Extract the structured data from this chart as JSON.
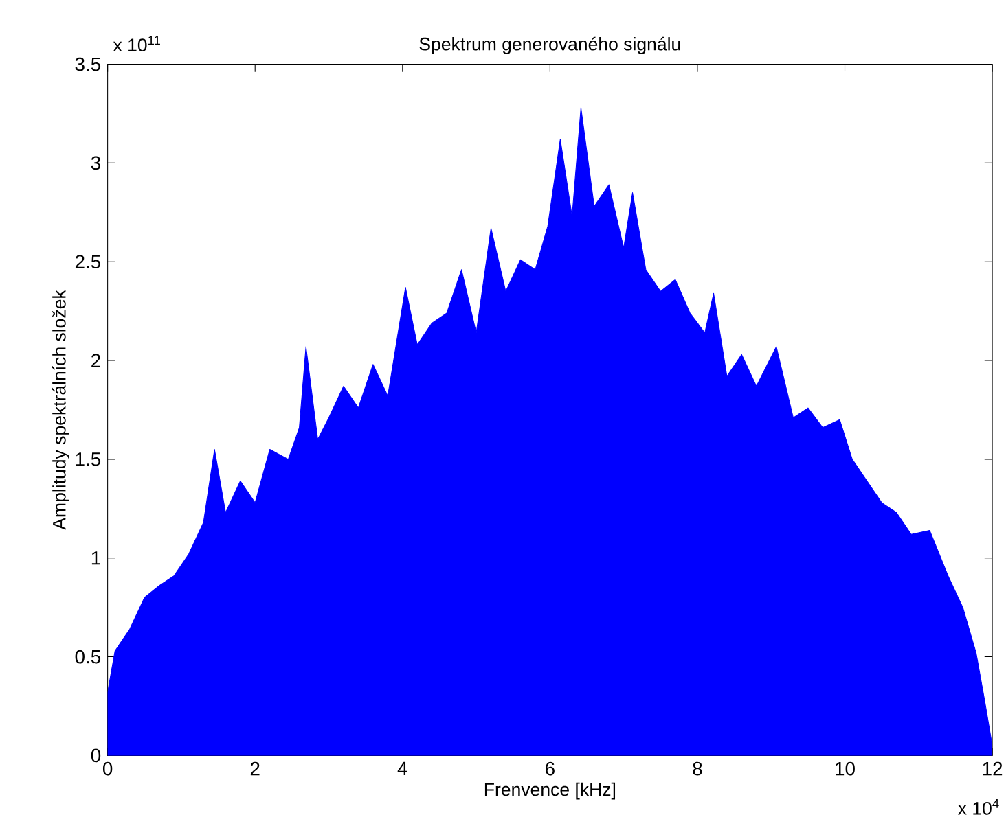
{
  "chart_data": {
    "type": "area",
    "title": "Spektrum generovaného signálu",
    "xlabel": "Frenvence [kHz]",
    "ylabel": "Amplitudy spektrálních složek",
    "annotations": [
      "x 10$^{4}$",
      "x 10$^{11}$"
    ],
    "x": [
      0,
      0.1,
      0.3,
      0.5,
      0.7,
      0.9,
      1.1,
      1.3,
      1.45,
      1.6,
      1.8,
      2.0,
      2.2,
      2.45,
      2.6,
      2.69,
      2.85,
      3.0,
      3.2,
      3.4,
      3.6,
      3.8,
      4.04,
      4.2,
      4.4,
      4.6,
      4.8,
      5.0,
      5.2,
      5.4,
      5.6,
      5.8,
      5.97,
      6.14,
      6.3,
      6.42,
      6.6,
      6.8,
      7.0,
      7.12,
      7.3,
      7.5,
      7.7,
      7.9,
      8.1,
      8.22,
      8.4,
      8.6,
      8.8,
      9.07,
      9.3,
      9.5,
      9.7,
      9.93,
      10.1,
      10.3,
      10.5,
      10.7,
      10.9,
      11.15,
      11.4,
      11.6,
      11.78,
      11.9,
      12.0
    ],
    "series": [
      {
        "color": "#0000ff",
        "values": [
          0.32,
          0.53,
          0.64,
          0.8,
          0.86,
          0.91,
          1.02,
          1.18,
          1.55,
          1.23,
          1.39,
          1.28,
          1.55,
          1.5,
          1.66,
          2.07,
          1.6,
          1.71,
          1.87,
          1.76,
          1.98,
          1.82,
          2.37,
          2.08,
          2.19,
          2.24,
          2.46,
          2.14,
          2.67,
          2.35,
          2.51,
          2.46,
          2.68,
          3.12,
          2.73,
          3.28,
          2.78,
          2.89,
          2.57,
          2.85,
          2.46,
          2.35,
          2.41,
          2.24,
          2.14,
          2.34,
          1.92,
          2.03,
          1.87,
          2.07,
          1.71,
          1.76,
          1.66,
          1.7,
          1.5,
          1.39,
          1.28,
          1.23,
          1.12,
          1.14,
          0.91,
          0.75,
          0.52,
          0.27,
          0.05
        ]
      }
    ],
    "xlim": [
      0,
      12
    ],
    "ylim": [
      0,
      3.5
    ],
    "xticks": [
      0,
      2,
      4,
      6,
      8,
      10,
      12
    ],
    "yticks": [
      0,
      0.5,
      1,
      1.5,
      2,
      2.5,
      3,
      3.5
    ]
  }
}
